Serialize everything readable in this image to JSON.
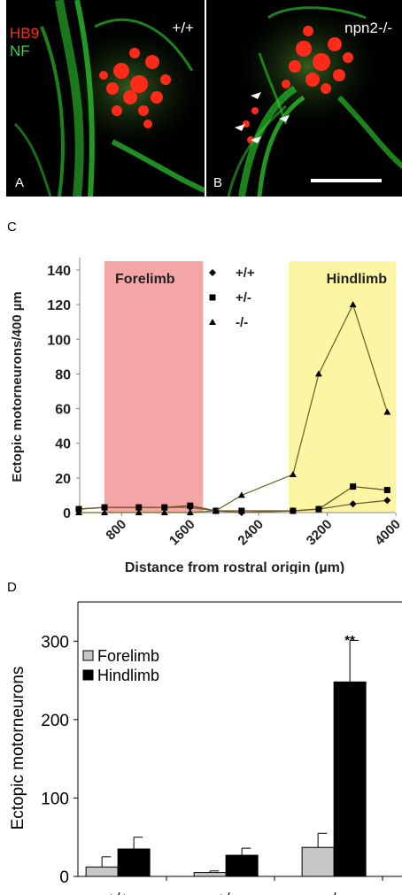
{
  "panels": {
    "a": {
      "letter": "A",
      "label_hb9": "HB9",
      "label_nf": "NF",
      "genotype": "+/+"
    },
    "b": {
      "letter": "B",
      "genotype": "npn2-/-"
    },
    "c": {
      "letter": "C"
    },
    "d": {
      "letter": "D"
    }
  },
  "colors": {
    "hb9": "#ff2a1a",
    "nf": "#2fd92f",
    "forelimb_band": "#f4a6a6",
    "hindlimb_band": "#fbf5a4",
    "bar_forelimb": "#c8c8c8",
    "bar_hindlimb": "#000000"
  },
  "chart_data": [
    {
      "type": "line",
      "title": "",
      "xlabel": "Distance from rostral origin (µm)",
      "ylabel": "Ectopic motorneurons/400 µm",
      "xlim": [
        400,
        4000
      ],
      "ylim": [
        0,
        140
      ],
      "xticks": [
        800,
        1600,
        2400,
        3200,
        4000
      ],
      "yticks": [
        0,
        20,
        40,
        60,
        80,
        100,
        120,
        140
      ],
      "regions": [
        {
          "label": "Forelimb",
          "from": 600,
          "to": 1750
        },
        {
          "label": "Hindlimb",
          "from": 2750,
          "to": 4000
        }
      ],
      "series": [
        {
          "name": "+/+",
          "marker": "diamond",
          "x": [
            300,
            600,
            1000,
            1300,
            1600,
            1900,
            2200,
            2800,
            3100,
            3500,
            3900
          ],
          "y": [
            2,
            3,
            3,
            3,
            3,
            1,
            0,
            1,
            2,
            5,
            7
          ]
        },
        {
          "name": "+/-",
          "marker": "square",
          "x": [
            300,
            600,
            1000,
            1300,
            1600,
            1900,
            2200,
            2800,
            3100,
            3500,
            3900
          ],
          "y": [
            2,
            3,
            3,
            3,
            4,
            1,
            1,
            1,
            2,
            15,
            13
          ]
        },
        {
          "name": "-/-",
          "marker": "triangle",
          "x": [
            300,
            600,
            1000,
            1300,
            1600,
            1900,
            2200,
            2800,
            3100,
            3500,
            3900
          ],
          "y": [
            0,
            0,
            0,
            0,
            0,
            1,
            10,
            22,
            80,
            120,
            58
          ]
        }
      ]
    },
    {
      "type": "bar",
      "title": "",
      "xlabel": "",
      "ylabel": "Ectopic motorneurons",
      "ylim": [
        0,
        350
      ],
      "yticks": [
        0,
        100,
        200,
        300
      ],
      "categories": [
        "+/+",
        "+/-",
        "-/-"
      ],
      "series": [
        {
          "name": "Forelimb",
          "values": [
            12,
            5,
            37
          ],
          "errors": [
            13,
            2,
            18
          ]
        },
        {
          "name": "Hindlimb",
          "values": [
            35,
            27,
            248
          ],
          "errors": [
            15,
            9,
            53
          ]
        }
      ],
      "annotations": [
        {
          "category": "-/-",
          "text": "**"
        }
      ],
      "legend": "top-left"
    }
  ]
}
